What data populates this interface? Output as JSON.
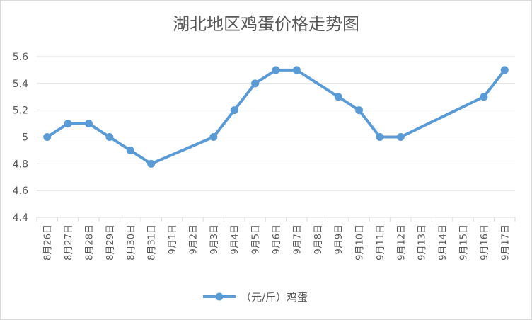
{
  "chart_data": {
    "type": "line",
    "title": "湖北地区鸡蛋价格走势图",
    "categories": [
      "8月26日",
      "8月27日",
      "8月28日",
      "8月29日",
      "8月30日",
      "8月31日",
      "9月1日",
      "9月2日",
      "9月3日",
      "9月4日",
      "9月5日",
      "9月6日",
      "9月7日",
      "9月8日",
      "9月9日",
      "9月10日",
      "9月11日",
      "9月12日",
      "9月13日",
      "9月14日",
      "9月15日",
      "9月16日",
      "9月17日"
    ],
    "series": [
      {
        "name": "（元/斤）鸡蛋",
        "values": [
          5.0,
          5.1,
          5.1,
          5.0,
          4.9,
          4.8,
          null,
          null,
          5.0,
          5.2,
          5.4,
          5.5,
          5.5,
          null,
          5.3,
          5.2,
          5.0,
          5.0,
          null,
          null,
          null,
          5.3,
          5.5
        ],
        "color": "#5b9bd5"
      }
    ],
    "yticks": [
      "4.4",
      "4.6",
      "4.8",
      "5",
      "5.2",
      "5.4",
      "5.6"
    ],
    "ylim": [
      4.4,
      5.6
    ],
    "grid": true,
    "legend": "bottom"
  }
}
